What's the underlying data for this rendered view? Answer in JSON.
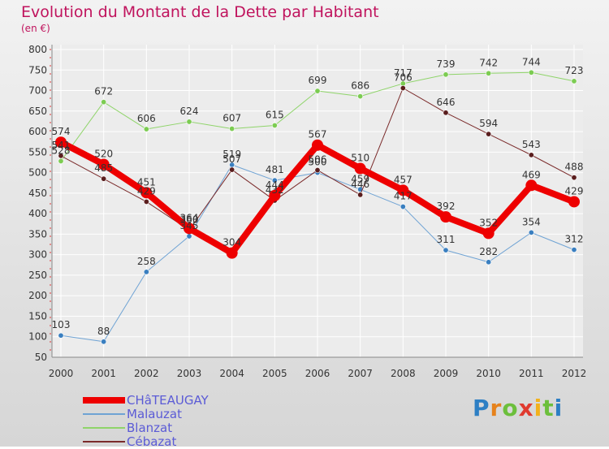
{
  "header": {
    "title": "Evolution du Montant de la Dette par Habitant",
    "subtitle": "(en €)"
  },
  "brand": {
    "letters": [
      "P",
      "r",
      "o",
      "x",
      "i",
      "t",
      "i"
    ],
    "colors": [
      "#2d7fc4",
      "#e6821c",
      "#6cbf3c",
      "#e03a2f",
      "#f2b11c",
      "#6cbf3c",
      "#2d7fc4"
    ]
  },
  "chart_data": {
    "type": "line",
    "title": "Evolution du Montant de la Dette par Habitant",
    "subtitle": "(en €)",
    "x": [
      "2000",
      "2001",
      "2002",
      "2003",
      "2004",
      "2005",
      "2006",
      "2007",
      "2008",
      "2009",
      "2010",
      "2011",
      "2012"
    ],
    "ylim": [
      50,
      800
    ],
    "yticks": [
      50,
      100,
      150,
      200,
      250,
      300,
      350,
      400,
      450,
      500,
      550,
      600,
      650,
      700,
      750,
      800
    ],
    "grid": true,
    "legend_position": "bottom-left",
    "series": [
      {
        "name": "Malauzat",
        "color": "#6fa3d4",
        "marker": "#3a7fc0",
        "width": 1,
        "values": [
          103,
          88,
          258,
          345,
          519,
          481,
          500,
          459,
          417,
          311,
          282,
          354,
          312
        ]
      },
      {
        "name": "Blanzat",
        "color": "#8fd46a",
        "marker": "#7ccc52",
        "width": 1,
        "values": [
          528,
          672,
          606,
          624,
          607,
          615,
          699,
          686,
          717,
          739,
          742,
          744,
          723
        ]
      },
      {
        "name": "Cébazat",
        "color": "#7a2a2a",
        "marker": "#5a1e1e",
        "width": 1,
        "values": [
          541,
          485,
          429,
          360,
          507,
          432,
          506,
          446,
          706,
          646,
          594,
          543,
          488
        ]
      },
      {
        "name": "CHâTEAUGAY",
        "color": "#ee0000",
        "marker": "#ee0000",
        "width": 8,
        "values": [
          574,
          520,
          451,
          364,
          304,
          444,
          567,
          510,
          457,
          392,
          352,
          469,
          429
        ]
      }
    ],
    "legend_order": [
      "CHâTEAUGAY",
      "Malauzat",
      "Blanzat",
      "Cébazat"
    ]
  }
}
